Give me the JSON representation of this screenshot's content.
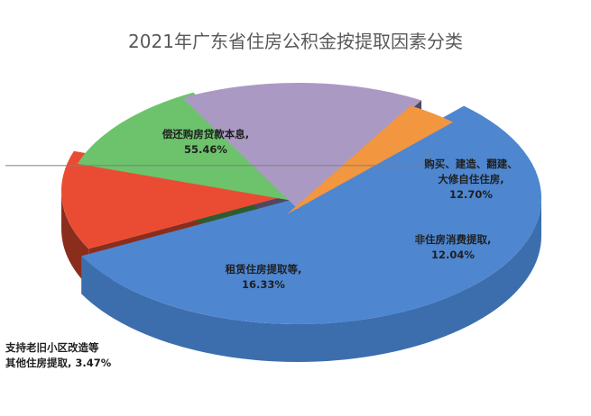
{
  "chart_data": {
    "type": "pie",
    "title": "2021年广东省住房公积金按提取因素分类",
    "categories": [
      "偿还购房贷款本息",
      "购买、建造、翻建、大修自住住房",
      "非住房消费提取",
      "租赁住房提取等",
      "支持老旧小区改造等其他住房提取"
    ],
    "values": [
      55.46,
      12.7,
      12.04,
      16.33,
      3.47
    ],
    "unit": "%",
    "labels": [
      {
        "lines": [
          "偿还购房贷款本息,",
          "55.46%"
        ]
      },
      {
        "lines": [
          "购买、建造、翻建、",
          "大修自住住房,",
          "12.70%"
        ]
      },
      {
        "lines": [
          "非住房消费提取,",
          "12.04%"
        ]
      },
      {
        "lines": [
          "租赁住房提取等,",
          "16.33%"
        ]
      },
      {
        "lines": [
          "支持老旧小区改造等",
          "其他住房提取, 3.47%"
        ]
      }
    ],
    "colors": {
      "top": [
        "#4e86d0",
        "#ea4c33",
        "#6cc36c",
        "#aa9ac3",
        "#f2963f"
      ],
      "side": [
        "#3c6ead",
        "#8b2d1c",
        "#2e5c2e",
        "#4f4860",
        "#c9741e"
      ]
    },
    "exploded": [
      false,
      true,
      true,
      true,
      true
    ],
    "style": "3d-exploded"
  }
}
